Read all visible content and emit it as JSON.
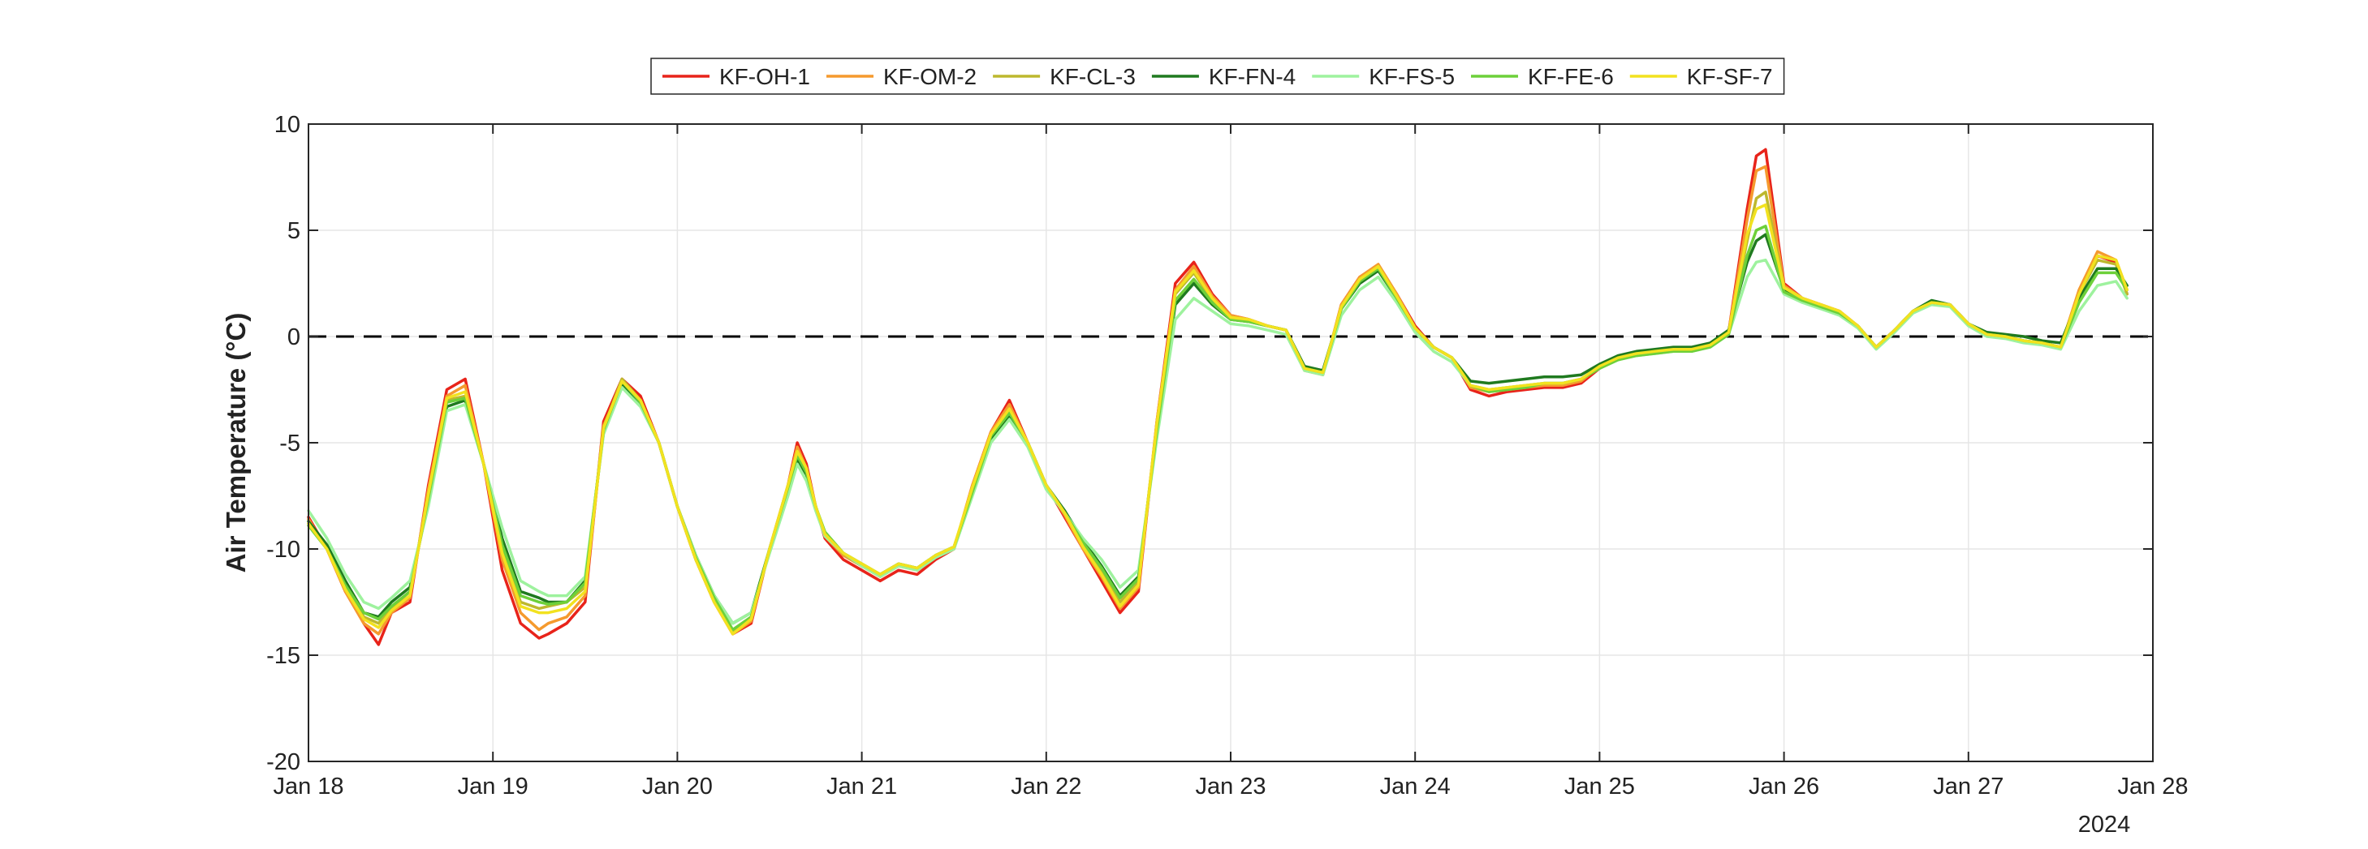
{
  "chart_data": {
    "type": "line",
    "title": "",
    "xlabel": "",
    "ylabel": "Air Temperature (°C)",
    "ylim": [
      -20,
      10
    ],
    "yticks": [
      -20,
      -15,
      -10,
      -5,
      0,
      5,
      10
    ],
    "xlim": [
      0,
      10
    ],
    "x_tick_values": [
      0,
      1,
      2,
      3,
      4,
      5,
      6,
      7,
      8,
      9,
      10
    ],
    "x_tick_labels": [
      "Jan 18",
      "Jan 19",
      "Jan 20",
      "Jan 21",
      "Jan 22",
      "Jan 23",
      "Jan 24",
      "Jan 25",
      "Jan 26",
      "Jan 27",
      "Jan 28"
    ],
    "x_axis_secondary_label": "2024",
    "grid": true,
    "reference_line": {
      "y": 0,
      "style": "dashed",
      "color": "#000000"
    },
    "legend": {
      "placement": "top-center",
      "orientation": "horizontal"
    },
    "x": [
      0,
      0.1,
      0.2,
      0.3,
      0.38,
      0.45,
      0.55,
      0.65,
      0.75,
      0.85,
      0.95,
      1.05,
      1.15,
      1.25,
      1.3,
      1.4,
      1.5,
      1.6,
      1.7,
      1.8,
      1.9,
      2.0,
      2.1,
      2.2,
      2.3,
      2.4,
      2.5,
      2.6,
      2.65,
      2.7,
      2.75,
      2.8,
      2.9,
      3.0,
      3.1,
      3.2,
      3.3,
      3.4,
      3.5,
      3.6,
      3.7,
      3.8,
      3.9,
      4.0,
      4.1,
      4.2,
      4.3,
      4.4,
      4.5,
      4.6,
      4.7,
      4.8,
      4.9,
      5.0,
      5.1,
      5.2,
      5.3,
      5.4,
      5.5,
      5.6,
      5.7,
      5.8,
      5.9,
      6.0,
      6.1,
      6.2,
      6.3,
      6.4,
      6.5,
      6.6,
      6.7,
      6.8,
      6.9,
      7.0,
      7.1,
      7.2,
      7.3,
      7.4,
      7.5,
      7.6,
      7.7,
      7.8,
      7.85,
      7.9,
      8.0,
      8.1,
      8.2,
      8.3,
      8.4,
      8.5,
      8.6,
      8.7,
      8.8,
      8.9,
      9.0,
      9.1,
      9.2,
      9.3,
      9.4,
      9.5,
      9.6,
      9.7,
      9.8,
      9.86
    ],
    "series": [
      {
        "name": "KF-OH-1",
        "color": "#e8231a",
        "values": [
          -8.5,
          -10,
          -12,
          -13.5,
          -14.5,
          -13,
          -12.5,
          -7,
          -2.5,
          -2,
          -6,
          -11,
          -13.5,
          -14.2,
          -14,
          -13.5,
          -12.5,
          -4,
          -2,
          -2.8,
          -5,
          -8,
          -10.5,
          -12.5,
          -14,
          -13.5,
          -10,
          -7,
          -5,
          -6,
          -8,
          -9.5,
          -10.5,
          -11,
          -11.5,
          -11,
          -11.2,
          -10.5,
          -10,
          -7,
          -4.5,
          -3,
          -5,
          -7,
          -8.5,
          -10,
          -11.5,
          -13,
          -12,
          -4,
          2.5,
          3.5,
          2,
          1,
          0.8,
          0.5,
          0.3,
          -1.5,
          -1.8,
          1.5,
          2.8,
          3.3,
          2,
          0.5,
          -0.5,
          -1,
          -2.5,
          -2.8,
          -2.6,
          -2.5,
          -2.4,
          -2.4,
          -2.2,
          -1.5,
          -1,
          -0.8,
          -0.7,
          -0.6,
          -0.6,
          -0.4,
          0.2,
          6,
          8.5,
          8.8,
          2.5,
          1.8,
          1.5,
          1.2,
          0.5,
          -0.5,
          0.3,
          1.2,
          1.6,
          1.5,
          0.6,
          0.1,
          0,
          -0.2,
          -0.3,
          -0.5,
          2,
          3.8,
          3.5,
          2
        ]
      },
      {
        "name": "KF-OM-2",
        "color": "#f59a2e",
        "values": [
          -8.6,
          -10,
          -12,
          -13.5,
          -14,
          -13,
          -12.3,
          -7.2,
          -2.8,
          -2.3,
          -6,
          -10.5,
          -13,
          -13.8,
          -13.5,
          -13.2,
          -12.2,
          -4.2,
          -2.2,
          -3,
          -5,
          -8,
          -10.5,
          -12.5,
          -14,
          -13.4,
          -10,
          -7,
          -5.2,
          -6.2,
          -8,
          -9.4,
          -10.3,
          -10.8,
          -11.3,
          -10.8,
          -11,
          -10.4,
          -10,
          -7,
          -4.5,
          -3.2,
          -5,
          -7,
          -8.4,
          -10,
          -11.3,
          -12.8,
          -11.8,
          -4,
          2.2,
          3.3,
          1.9,
          1,
          0.8,
          0.5,
          0.3,
          -1.6,
          -1.8,
          1.5,
          2.8,
          3.4,
          2,
          0.4,
          -0.5,
          -1,
          -2.4,
          -2.6,
          -2.5,
          -2.4,
          -2.3,
          -2.3,
          -2.1,
          -1.4,
          -1,
          -0.8,
          -0.7,
          -0.6,
          -0.6,
          -0.4,
          0.2,
          5.5,
          7.8,
          8,
          2.4,
          1.8,
          1.5,
          1.2,
          0.5,
          -0.5,
          0.3,
          1.2,
          1.6,
          1.5,
          0.6,
          0.1,
          0,
          -0.2,
          -0.3,
          -0.5,
          2.2,
          4,
          3.6,
          2.2
        ]
      },
      {
        "name": "KF-CL-3",
        "color": "#bdb82e",
        "values": [
          -8.8,
          -10,
          -11.8,
          -13.2,
          -13.5,
          -12.8,
          -12,
          -7.5,
          -3,
          -2.8,
          -6,
          -10,
          -12.5,
          -12.8,
          -12.7,
          -12.5,
          -11.8,
          -4.3,
          -2,
          -3,
          -5,
          -8,
          -10.5,
          -12.5,
          -13.9,
          -13.2,
          -10,
          -7,
          -5.5,
          -6.3,
          -8,
          -9.3,
          -10.2,
          -10.7,
          -11.2,
          -10.7,
          -10.9,
          -10.3,
          -9.9,
          -7.2,
          -4.7,
          -3.5,
          -5,
          -7,
          -8.3,
          -9.8,
          -11,
          -12.5,
          -11.5,
          -4.2,
          2,
          3,
          1.7,
          0.9,
          0.7,
          0.5,
          0.3,
          -1.5,
          -1.7,
          1.4,
          2.7,
          3.3,
          1.9,
          0.4,
          -0.5,
          -1,
          -2.3,
          -2.5,
          -2.4,
          -2.3,
          -2.2,
          -2.2,
          -2,
          -1.4,
          -1,
          -0.8,
          -0.7,
          -0.6,
          -0.6,
          -0.4,
          0.2,
          4.5,
          6.5,
          6.8,
          2.3,
          1.8,
          1.4,
          1.1,
          0.5,
          -0.5,
          0.3,
          1.2,
          1.6,
          1.5,
          0.6,
          0.1,
          0,
          -0.2,
          -0.3,
          -0.5,
          2,
          3.6,
          3.4,
          2
        ]
      },
      {
        "name": "KF-FN-4",
        "color": "#1f7a1f",
        "values": [
          -8.7,
          -9.8,
          -11.5,
          -13,
          -13.2,
          -12.5,
          -11.8,
          -7.8,
          -3.3,
          -3,
          -6,
          -9.5,
          -12,
          -12.3,
          -12.5,
          -12.5,
          -11.5,
          -4.5,
          -2.2,
          -3.2,
          -5,
          -8,
          -10.3,
          -12.2,
          -13.5,
          -13,
          -10,
          -7.2,
          -5.8,
          -6.5,
          -8,
          -9.3,
          -10.2,
          -10.8,
          -11.2,
          -10.7,
          -10.9,
          -10.3,
          -9.9,
          -7.4,
          -4.8,
          -3.7,
          -5,
          -7,
          -8.2,
          -9.6,
          -10.8,
          -12.2,
          -11.3,
          -4.5,
          1.5,
          2.5,
          1.5,
          0.8,
          0.7,
          0.5,
          0.3,
          -1.4,
          -1.6,
          1.3,
          2.5,
          3.1,
          1.8,
          0.4,
          -0.5,
          -1,
          -2.1,
          -2.2,
          -2.1,
          -2,
          -1.9,
          -1.9,
          -1.8,
          -1.3,
          -0.9,
          -0.7,
          -0.6,
          -0.5,
          -0.5,
          -0.3,
          0.3,
          3.5,
          4.5,
          4.8,
          2.2,
          1.7,
          1.4,
          1.1,
          0.5,
          -0.5,
          0.3,
          1.2,
          1.7,
          1.5,
          0.6,
          0.2,
          0.1,
          0,
          -0.2,
          -0.3,
          1.8,
          3.2,
          3.2,
          2.4
        ]
      },
      {
        "name": "KF-FS-5",
        "color": "#9ef29e",
        "values": [
          -8.2,
          -9.5,
          -11.2,
          -12.5,
          -12.8,
          -12.3,
          -11.5,
          -8,
          -3.5,
          -3.2,
          -6,
          -9,
          -11.5,
          -12,
          -12.2,
          -12.2,
          -11.3,
          -4.6,
          -2.4,
          -3.3,
          -5,
          -8,
          -10.3,
          -12.2,
          -13.5,
          -13,
          -10.2,
          -7.5,
          -6,
          -6.8,
          -8.2,
          -9.4,
          -10.2,
          -10.8,
          -11.3,
          -10.8,
          -11,
          -10.4,
          -10,
          -7.5,
          -5,
          -3.9,
          -5.2,
          -7.2,
          -8.3,
          -9.5,
          -10.5,
          -11.8,
          -11,
          -4.8,
          0.8,
          1.8,
          1.2,
          0.6,
          0.5,
          0.3,
          0.1,
          -1.6,
          -1.8,
          1,
          2.2,
          2.8,
          1.6,
          0.2,
          -0.7,
          -1.2,
          -2.3,
          -2.5,
          -2.4,
          -2.3,
          -2.2,
          -2.2,
          -2,
          -1.5,
          -1.1,
          -0.9,
          -0.8,
          -0.7,
          -0.7,
          -0.5,
          0.1,
          2.8,
          3.5,
          3.6,
          2,
          1.6,
          1.3,
          1,
          0.4,
          -0.6,
          0.2,
          1.1,
          1.5,
          1.4,
          0.5,
          0,
          -0.1,
          -0.3,
          -0.4,
          -0.6,
          1.2,
          2.4,
          2.6,
          1.8
        ]
      },
      {
        "name": "KF-FE-6",
        "color": "#6dd03a",
        "values": [
          -8.9,
          -10,
          -11.7,
          -13,
          -13.3,
          -12.7,
          -12,
          -7.6,
          -3.1,
          -2.9,
          -6,
          -9.8,
          -12.2,
          -12.5,
          -12.6,
          -12.5,
          -11.6,
          -4.4,
          -2.1,
          -3.1,
          -5,
          -8,
          -10.4,
          -12.3,
          -13.8,
          -13.2,
          -10,
          -7.1,
          -5.6,
          -6.4,
          -8,
          -9.2,
          -10.2,
          -10.7,
          -11.2,
          -10.7,
          -10.9,
          -10.3,
          -9.9,
          -7.3,
          -4.7,
          -3.6,
          -5,
          -7,
          -8.3,
          -9.7,
          -10.9,
          -12.3,
          -11.4,
          -4.4,
          1.7,
          2.7,
          1.6,
          0.8,
          0.7,
          0.5,
          0.3,
          -1.5,
          -1.7,
          1.3,
          2.6,
          3.2,
          1.8,
          0.4,
          -0.5,
          -1,
          -2.3,
          -2.6,
          -2.5,
          -2.4,
          -2.2,
          -2.2,
          -2,
          -1.5,
          -1.1,
          -0.9,
          -0.8,
          -0.7,
          -0.7,
          -0.5,
          0.1,
          3.8,
          5,
          5.2,
          2.1,
          1.7,
          1.4,
          1.1,
          0.5,
          -0.5,
          0.3,
          1.2,
          1.6,
          1.5,
          0.6,
          0.1,
          0,
          -0.2,
          -0.3,
          -0.5,
          1.6,
          3,
          3,
          2.2
        ]
      },
      {
        "name": "KF-SF-7",
        "color": "#f2e21f",
        "values": [
          -8.8,
          -10,
          -11.9,
          -13.3,
          -13.7,
          -12.9,
          -12.2,
          -7.4,
          -2.9,
          -2.6,
          -6,
          -10.2,
          -12.7,
          -13,
          -13,
          -12.8,
          -12,
          -4.3,
          -2.1,
          -3,
          -5,
          -8,
          -10.5,
          -12.5,
          -14,
          -13.3,
          -10,
          -7,
          -5.4,
          -6.2,
          -8,
          -9.3,
          -10.2,
          -10.7,
          -11.2,
          -10.7,
          -10.9,
          -10.3,
          -9.9,
          -7.1,
          -4.6,
          -3.4,
          -5,
          -7,
          -8.3,
          -9.9,
          -11.2,
          -12.7,
          -11.7,
          -4.1,
          2.1,
          3.1,
          1.8,
          0.9,
          0.8,
          0.5,
          0.3,
          -1.5,
          -1.7,
          1.4,
          2.7,
          3.3,
          1.9,
          0.4,
          -0.5,
          -1,
          -2.3,
          -2.5,
          -2.4,
          -2.3,
          -2.2,
          -2.2,
          -2,
          -1.4,
          -1,
          -0.8,
          -0.7,
          -0.6,
          -0.6,
          -0.4,
          0.2,
          4.8,
          6,
          6.2,
          2.3,
          1.8,
          1.5,
          1.2,
          0.5,
          -0.5,
          0.3,
          1.2,
          1.6,
          1.5,
          0.6,
          0.1,
          0,
          -0.2,
          -0.3,
          -0.5,
          2,
          3.8,
          3.6,
          2.2
        ]
      }
    ]
  }
}
